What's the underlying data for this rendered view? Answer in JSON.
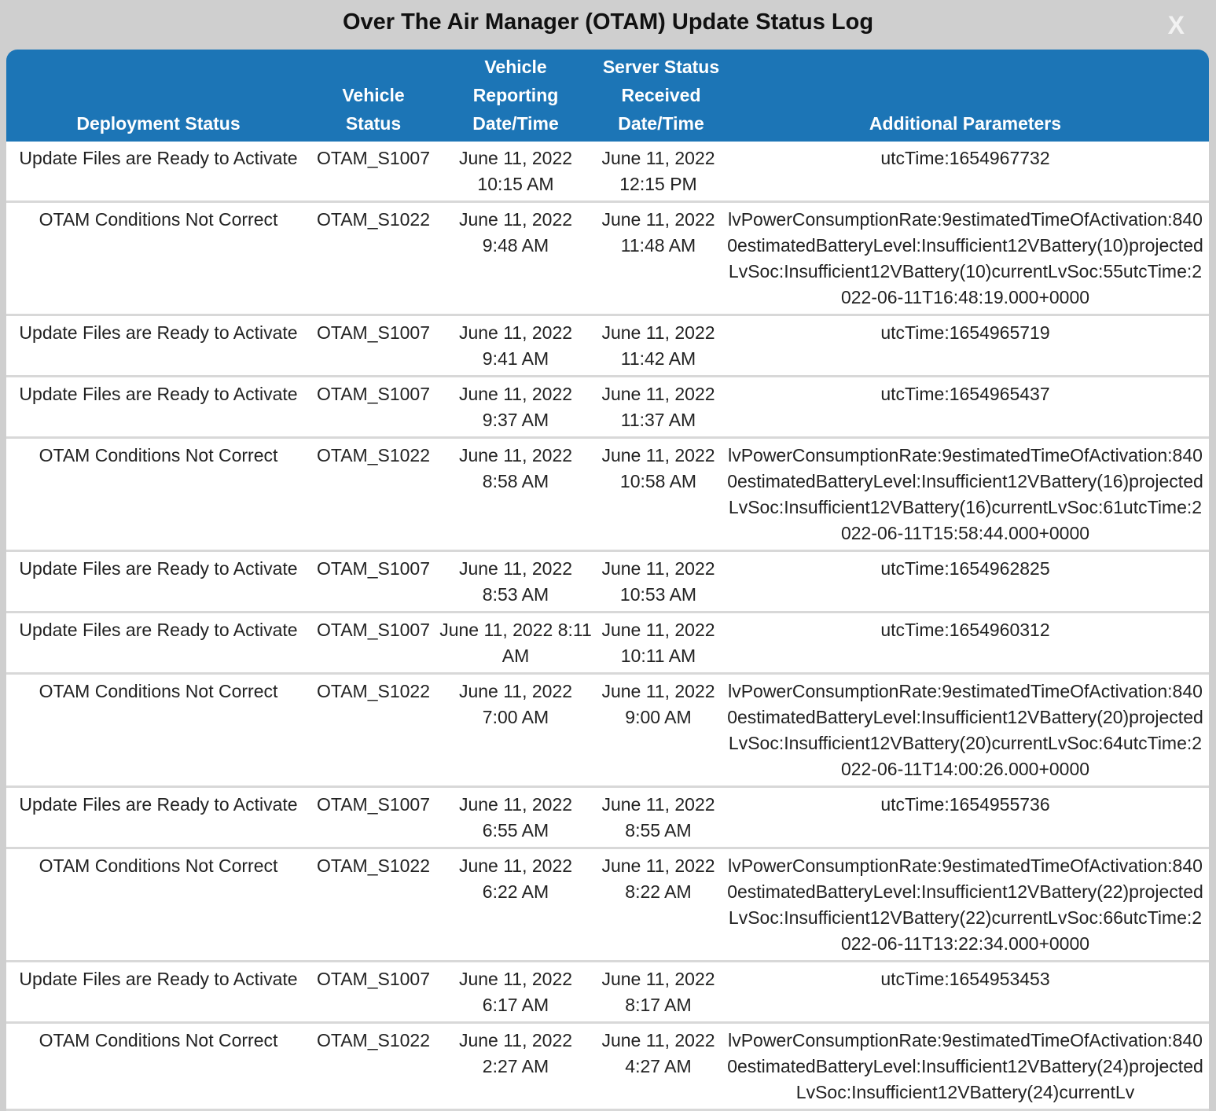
{
  "title": "Over The Air Manager (OTAM) Update Status Log",
  "close": "X",
  "table": {
    "headers": [
      "Deployment Status",
      "Vehicle Status",
      "Vehicle Reporting Date/Time",
      "Server Status Received Date/Time",
      "Additional Parameters"
    ],
    "rows": [
      [
        "Update Files are Ready to Activate",
        "OTAM_S1007",
        "June 11, 2022 10:15 AM",
        "June 11, 2022 12:15 PM",
        "utcTime:1654967732"
      ],
      [
        "OTAM Conditions Not Correct",
        "OTAM_S1022",
        "June 11, 2022 9:48 AM",
        "June 11, 2022 11:48 AM",
        "lvPowerConsumptionRate:9estimatedTimeOfActivation:8400estimatedBatteryLevel:Insufficient12VBattery(10)projectedLvSoc:Insufficient12VBattery(10)currentLvSoc:55utcTime:2022-06-11T16:48:19.000+0000"
      ],
      [
        "Update Files are Ready to Activate",
        "OTAM_S1007",
        "June 11, 2022 9:41 AM",
        "June 11, 2022 11:42 AM",
        "utcTime:1654965719"
      ],
      [
        "Update Files are Ready to Activate",
        "OTAM_S1007",
        "June 11, 2022 9:37 AM",
        "June 11, 2022 11:37 AM",
        "utcTime:1654965437"
      ],
      [
        "OTAM Conditions Not Correct",
        "OTAM_S1022",
        "June 11, 2022 8:58 AM",
        "June 11, 2022 10:58 AM",
        "lvPowerConsumptionRate:9estimatedTimeOfActivation:8400estimatedBatteryLevel:Insufficient12VBattery(16)projectedLvSoc:Insufficient12VBattery(16)currentLvSoc:61utcTime:2022-06-11T15:58:44.000+0000"
      ],
      [
        "Update Files are Ready to Activate",
        "OTAM_S1007",
        "June 11, 2022 8:53 AM",
        "June 11, 2022 10:53 AM",
        "utcTime:1654962825"
      ],
      [
        "Update Files are Ready to Activate",
        "OTAM_S1007",
        "June 11, 2022 8:11 AM",
        "June 11, 2022 10:11 AM",
        "utcTime:1654960312"
      ],
      [
        "OTAM Conditions Not Correct",
        "OTAM_S1022",
        "June 11, 2022 7:00 AM",
        "June 11, 2022 9:00 AM",
        "lvPowerConsumptionRate:9estimatedTimeOfActivation:8400estimatedBatteryLevel:Insufficient12VBattery(20)projectedLvSoc:Insufficient12VBattery(20)currentLvSoc:64utcTime:2022-06-11T14:00:26.000+0000"
      ],
      [
        "Update Files are Ready to Activate",
        "OTAM_S1007",
        "June 11, 2022 6:55 AM",
        "June 11, 2022 8:55 AM",
        "utcTime:1654955736"
      ],
      [
        "OTAM Conditions Not Correct",
        "OTAM_S1022",
        "June 11, 2022 6:22 AM",
        "June 11, 2022 8:22 AM",
        "lvPowerConsumptionRate:9estimatedTimeOfActivation:8400estimatedBatteryLevel:Insufficient12VBattery(22)projectedLvSoc:Insufficient12VBattery(22)currentLvSoc:66utcTime:2022-06-11T13:22:34.000+0000"
      ],
      [
        "Update Files are Ready to Activate",
        "OTAM_S1007",
        "June 11, 2022 6:17 AM",
        "June 11, 2022 8:17 AM",
        "utcTime:1654953453"
      ],
      [
        "OTAM Conditions Not Correct",
        "OTAM_S1022",
        "June 11, 2022 2:27 AM",
        "June 11, 2022 4:27 AM",
        "lvPowerConsumptionRate:9estimatedTimeOfActivation:8400estimatedBatteryLevel:Insufficient12VBattery(24)projectedLvSoc:Insufficient12VBattery(24)currentLv"
      ]
    ]
  }
}
